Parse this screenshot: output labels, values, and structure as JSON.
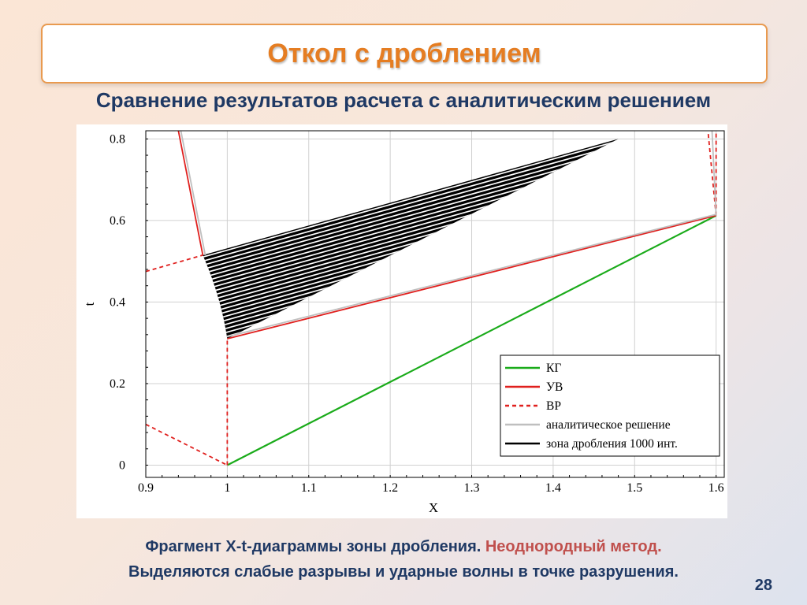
{
  "slide": {
    "title": "Откол с дроблением",
    "subtitle": "Сравнение результатов расчета с аналитическим решением",
    "caption_line1_a": "Фрагмент X-t-диаграммы зоны дробления.",
    "caption_line1_b": "Неоднородный метод.",
    "caption_line2": "Выделяются слабые  разрывы и ударные волны в точке разрушения.",
    "page_number": "28"
  },
  "chart_data": {
    "type": "line",
    "xlabel": "X",
    "ylabel": "t",
    "xlim": [
      0.9,
      1.61
    ],
    "ylim": [
      -0.03,
      0.82
    ],
    "x_ticks": [
      "0.9",
      "1",
      "1.1",
      "1.2",
      "1.3",
      "1.4",
      "1.5",
      "1.6"
    ],
    "x_tick_values": [
      0.9,
      1.0,
      1.1,
      1.2,
      1.3,
      1.4,
      1.5,
      1.6
    ],
    "y_ticks": [
      "0",
      "0.2",
      "0.4",
      "0.6",
      "0.8"
    ],
    "y_tick_values": [
      0,
      0.2,
      0.4,
      0.6,
      0.8
    ],
    "grid": true,
    "legend_position": "bottom-right",
    "legend": [
      {
        "label": "КГ",
        "color": "#1aab1a",
        "dash": false
      },
      {
        "label": "УВ",
        "color": "#e0201e",
        "dash": false
      },
      {
        "label": "ВР",
        "color": "#e0201e",
        "dash": true
      },
      {
        "label": "аналитическое решение",
        "color": "#bfbfbf",
        "dash": false
      },
      {
        "label": "зона дробления 1000 инт.",
        "color": "#000000",
        "dash": false
      }
    ],
    "series": [
      {
        "legend_index": 0,
        "points": [
          [
            1.0,
            0.0
          ],
          [
            1.6,
            0.612
          ]
        ]
      },
      {
        "legend_index": 1,
        "points": [
          [
            1.0,
            0.31
          ],
          [
            1.6,
            0.612
          ]
        ]
      },
      {
        "legend_index": 1,
        "points": [
          [
            0.94,
            0.82
          ],
          [
            0.97,
            0.515
          ]
        ]
      },
      {
        "legend_index": 2,
        "points": [
          [
            0.9,
            0.1
          ],
          [
            1.0,
            0.0
          ]
        ]
      },
      {
        "legend_index": 2,
        "points": [
          [
            1.0,
            0.0
          ],
          [
            1.0,
            0.31
          ]
        ]
      },
      {
        "legend_index": 2,
        "points": [
          [
            0.9,
            0.475
          ],
          [
            0.97,
            0.515
          ]
        ]
      },
      {
        "legend_index": 2,
        "points": [
          [
            1.6,
            0.612
          ],
          [
            1.59,
            0.82
          ]
        ]
      },
      {
        "legend_index": 2,
        "points": [
          [
            1.6,
            0.612
          ],
          [
            1.6,
            0.82
          ]
        ]
      },
      {
        "legend_index": 3,
        "points": [
          [
            1.0,
            0.315
          ],
          [
            1.6,
            0.615
          ]
        ]
      },
      {
        "legend_index": 3,
        "points": [
          [
            1.6,
            0.612
          ],
          [
            1.595,
            0.82
          ]
        ]
      },
      {
        "legend_index": 3,
        "points": [
          [
            0.943,
            0.82
          ],
          [
            0.973,
            0.515
          ]
        ]
      }
    ],
    "fragmentation_zone": {
      "legend_index": 4,
      "outline": [
        [
          0.97,
          0.515
        ],
        [
          1.48,
          0.8
        ],
        [
          1.0,
          0.31
        ]
      ]
    }
  }
}
